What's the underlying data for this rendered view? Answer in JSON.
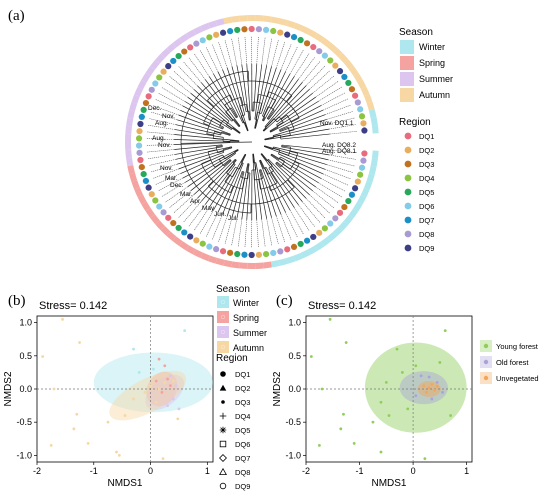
{
  "panel_labels": {
    "a": "(a)",
    "b": "(b)",
    "c": "(c)"
  },
  "colors": {
    "seasons": {
      "Winter": "#aee7ee",
      "Spring": "#f4a3a0",
      "Summer": "#dcc6ef",
      "Autumn": "#f7d7a3"
    },
    "regions": {
      "DQ1": "#e86b7e",
      "DQ2": "#e9ad5e",
      "DQ3": "#c2711f",
      "DQ4": "#8bc440",
      "DQ5": "#27a85a",
      "DQ6": "#83cbe8",
      "DQ7": "#1c8fc7",
      "DQ8": "#a89bd3",
      "DQ9": "#3c3f86"
    },
    "forest": {
      "Young forest": "#8fce5a",
      "Old forest": "#a8a4d8",
      "Unvegetated": "#f2a65a"
    }
  },
  "chart_data": [
    {
      "type": "dendrogram",
      "panel": "a",
      "legend_season_title": "Season",
      "legend_season": [
        "Winter",
        "Spring",
        "Summer",
        "Autumn"
      ],
      "legend_region_title": "Region",
      "legend_region": [
        "DQ1",
        "DQ2",
        "DQ3",
        "DQ4",
        "DQ5",
        "DQ6",
        "DQ7",
        "DQ8",
        "DQ9"
      ],
      "tip_labels_visible": [
        "Aug. DQ8.2",
        "Aug. DQ8.1",
        "Nov. DQ1.1",
        "Aug.",
        "Nov.",
        "Dec.",
        "Aug.",
        "Nov.",
        "Nov.",
        "Mar.",
        "Dec.",
        "Mar.",
        "Apr.",
        "May",
        "Jun.",
        "Jul."
      ]
    },
    {
      "type": "scatter",
      "panel": "b",
      "stress_label": "Stress= 0.142",
      "xlabel": "NMDS1",
      "ylabel": "NMDS2",
      "xlim": [
        -2,
        1.1
      ],
      "ylim": [
        -1.1,
        1.1
      ],
      "xticks": [
        "-2",
        "-1",
        "0",
        "1"
      ],
      "yticks": [
        "1.0",
        "0.5",
        "0.0",
        "-0.5",
        "-1.0"
      ],
      "legend_season_title": "Season",
      "legend_season": [
        "Winter",
        "Spring",
        "Summer",
        "Autumn"
      ],
      "legend_region_title": "Region",
      "legend_region": [
        {
          "name": "DQ1",
          "shape": "circle"
        },
        {
          "name": "DQ2",
          "shape": "triangle"
        },
        {
          "name": "DQ3",
          "shape": "dot"
        },
        {
          "name": "DQ4",
          "shape": "plus"
        },
        {
          "name": "DQ5",
          "shape": "asterisk"
        },
        {
          "name": "DQ6",
          "shape": "square-open"
        },
        {
          "name": "DQ7",
          "shape": "diamond-open"
        },
        {
          "name": "DQ8",
          "shape": "triangle-open"
        },
        {
          "name": "DQ9",
          "shape": "circle-open"
        }
      ],
      "ellipses": [
        {
          "season": "Winter",
          "cx": 0.05,
          "cy": 0.1,
          "rx": 1.05,
          "ry": 0.45,
          "angle": 0
        },
        {
          "season": "Spring",
          "cx": 0.2,
          "cy": 0.0,
          "rx": 0.32,
          "ry": 0.22,
          "angle": 60
        },
        {
          "season": "Summer",
          "cx": 0.25,
          "cy": -0.05,
          "rx": 0.4,
          "ry": 0.2,
          "angle": 40
        },
        {
          "season": "Autumn",
          "cx": -0.05,
          "cy": -0.1,
          "rx": 0.75,
          "ry": 0.25,
          "angle": 28
        }
      ],
      "points": [
        {
          "x": -1.9,
          "y": 0.49,
          "s": "Autumn"
        },
        {
          "x": -1.55,
          "y": 1.05,
          "s": "Autumn"
        },
        {
          "x": -1.25,
          "y": 0.7,
          "s": "Autumn"
        },
        {
          "x": -1.7,
          "y": 0.0,
          "s": "Autumn"
        },
        {
          "x": -1.35,
          "y": -0.6,
          "s": "Autumn"
        },
        {
          "x": -1.3,
          "y": -0.38,
          "s": "Autumn"
        },
        {
          "x": -1.75,
          "y": -0.85,
          "s": "Autumn"
        },
        {
          "x": -1.1,
          "y": -0.82,
          "s": "Autumn"
        },
        {
          "x": -0.75,
          "y": -0.5,
          "s": "Autumn"
        },
        {
          "x": -0.6,
          "y": -0.95,
          "s": "Autumn"
        },
        {
          "x": -0.55,
          "y": -1.0,
          "s": "Autumn"
        },
        {
          "x": -0.45,
          "y": -0.4,
          "s": "Autumn"
        },
        {
          "x": 0.22,
          "y": -1.05,
          "s": "Autumn"
        },
        {
          "x": -0.3,
          "y": 0.6,
          "s": "Winter"
        },
        {
          "x": 0.6,
          "y": 0.88,
          "s": "Winter"
        },
        {
          "x": -0.2,
          "y": 0.25,
          "s": "Winter"
        },
        {
          "x": 0.05,
          "y": 0.3,
          "s": "Winter"
        },
        {
          "x": 0.15,
          "y": 0.45,
          "s": "Spring"
        },
        {
          "x": 0.25,
          "y": 0.35,
          "s": "Spring"
        },
        {
          "x": 0.3,
          "y": 0.15,
          "s": "Spring"
        },
        {
          "x": 0.35,
          "y": 0.05,
          "s": "Spring"
        },
        {
          "x": 0.1,
          "y": 0.12,
          "s": "Spring"
        },
        {
          "x": 0.2,
          "y": -0.05,
          "s": "Spring"
        },
        {
          "x": 0.4,
          "y": -0.15,
          "s": "Summer"
        },
        {
          "x": 0.45,
          "y": 0.05,
          "s": "Summer"
        },
        {
          "x": 0.3,
          "y": -0.25,
          "s": "Summer"
        },
        {
          "x": 0.5,
          "y": -0.3,
          "s": "Summer"
        },
        {
          "x": 0.35,
          "y": 0.2,
          "s": "Summer"
        },
        {
          "x": 0.1,
          "y": -0.2,
          "s": "Autumn"
        },
        {
          "x": -0.1,
          "y": -0.05,
          "s": "Autumn"
        },
        {
          "x": 0.0,
          "y": 0.05,
          "s": "Autumn"
        },
        {
          "x": 0.25,
          "y": 0.1,
          "s": "Autumn"
        },
        {
          "x": 0.4,
          "y": 0.12,
          "s": "Autumn"
        },
        {
          "x": 0.15,
          "y": 0.0,
          "s": "Autumn"
        },
        {
          "x": -0.3,
          "y": -0.15,
          "s": "Autumn"
        },
        {
          "x": 0.48,
          "y": -0.45,
          "s": "Autumn"
        }
      ]
    },
    {
      "type": "scatter",
      "panel": "c",
      "stress_label": "Stress= 0.142",
      "xlabel": "NMDS1",
      "ylabel": "NMDS2",
      "xlim": [
        -2,
        1.1
      ],
      "ylim": [
        -1.1,
        1.1
      ],
      "xticks": [
        "-2",
        "-1",
        "0",
        "1"
      ],
      "yticks": [
        "1.0",
        "0.5",
        "0.0",
        "-0.5",
        "-1.0"
      ],
      "legend": [
        "Young forest",
        "Old forest",
        "Unvegetated"
      ],
      "ellipses": [
        {
          "group": "Young forest",
          "cx": 0.05,
          "cy": 0.02,
          "rx": 0.95,
          "ry": 0.68,
          "angle": 0
        },
        {
          "group": "Old forest",
          "cx": 0.2,
          "cy": 0.02,
          "rx": 0.45,
          "ry": 0.25,
          "angle": 0
        },
        {
          "group": "Unvegetated",
          "cx": 0.3,
          "cy": 0.0,
          "rx": 0.22,
          "ry": 0.12,
          "angle": 0
        }
      ],
      "points": [
        {
          "x": -1.9,
          "y": 0.49,
          "g": "Young forest"
        },
        {
          "x": -1.55,
          "y": 1.05,
          "g": "Young forest"
        },
        {
          "x": -1.25,
          "y": 0.7,
          "g": "Young forest"
        },
        {
          "x": -1.7,
          "y": 0.0,
          "g": "Young forest"
        },
        {
          "x": -1.35,
          "y": -0.6,
          "g": "Young forest"
        },
        {
          "x": -1.3,
          "y": -0.38,
          "g": "Young forest"
        },
        {
          "x": -1.75,
          "y": -0.85,
          "g": "Young forest"
        },
        {
          "x": -1.1,
          "y": -0.82,
          "g": "Young forest"
        },
        {
          "x": -0.75,
          "y": -0.5,
          "g": "Young forest"
        },
        {
          "x": -0.6,
          "y": -0.95,
          "g": "Young forest"
        },
        {
          "x": -0.45,
          "y": -0.4,
          "g": "Young forest"
        },
        {
          "x": 0.22,
          "y": -1.05,
          "g": "Young forest"
        },
        {
          "x": -0.3,
          "y": 0.6,
          "g": "Young forest"
        },
        {
          "x": 0.6,
          "y": 0.88,
          "g": "Young forest"
        },
        {
          "x": -0.2,
          "y": 0.25,
          "g": "Young forest"
        },
        {
          "x": 0.05,
          "y": 0.35,
          "g": "Young forest"
        },
        {
          "x": -0.5,
          "y": 0.1,
          "g": "Young forest"
        },
        {
          "x": -0.6,
          "y": -0.2,
          "g": "Young forest"
        },
        {
          "x": 0.7,
          "y": -0.4,
          "g": "Young forest"
        },
        {
          "x": 0.5,
          "y": 0.4,
          "g": "Young forest"
        },
        {
          "x": -0.1,
          "y": -0.3,
          "g": "Young forest"
        },
        {
          "x": 0.15,
          "y": 0.2,
          "g": "Old forest"
        },
        {
          "x": 0.3,
          "y": 0.18,
          "g": "Old forest"
        },
        {
          "x": 0.45,
          "y": 0.1,
          "g": "Old forest"
        },
        {
          "x": 0.05,
          "y": -0.1,
          "g": "Old forest"
        },
        {
          "x": 0.35,
          "y": -0.15,
          "g": "Old forest"
        },
        {
          "x": 0.55,
          "y": -0.05,
          "g": "Old forest"
        },
        {
          "x": 0.2,
          "y": 0.05,
          "g": "Unvegetated"
        },
        {
          "x": 0.3,
          "y": 0.02,
          "g": "Unvegetated"
        },
        {
          "x": 0.4,
          "y": -0.02,
          "g": "Unvegetated"
        },
        {
          "x": 0.25,
          "y": -0.05,
          "g": "Unvegetated"
        },
        {
          "x": 0.35,
          "y": 0.07,
          "g": "Unvegetated"
        },
        {
          "x": 0.45,
          "y": 0.04,
          "g": "Unvegetated"
        }
      ]
    }
  ]
}
